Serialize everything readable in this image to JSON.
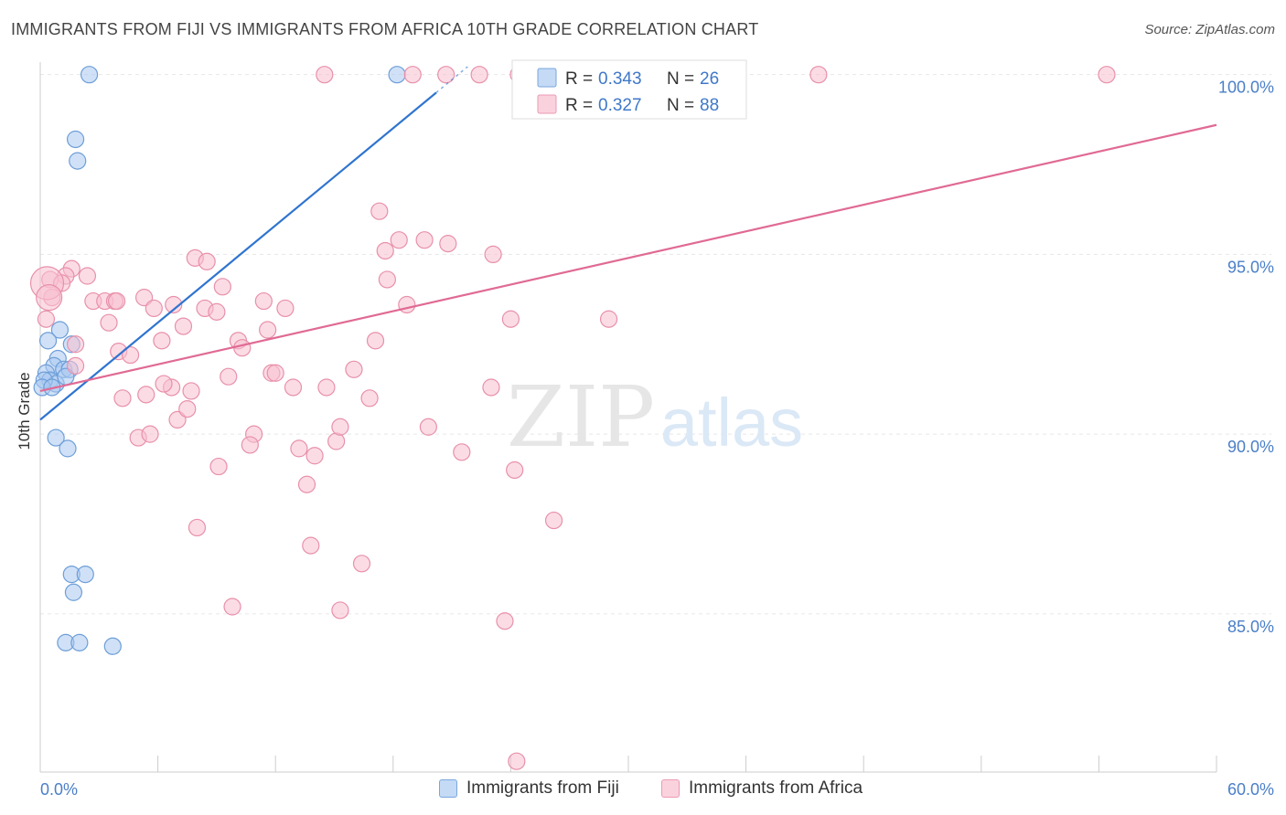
{
  "title": "IMMIGRANTS FROM FIJI VS IMMIGRANTS FROM AFRICA 10TH GRADE CORRELATION CHART",
  "source": "Source: ZipAtlas.com",
  "watermark": {
    "zip": "ZIP",
    "atlas": "atlas"
  },
  "chart_data": {
    "type": "scatter",
    "title": "IMMIGRANTS FROM FIJI VS IMMIGRANTS FROM AFRICA 10TH GRADE CORRELATION CHART",
    "xlabel": "",
    "ylabel": "10th Grade",
    "xlim": [
      0,
      60
    ],
    "ylim": [
      80.6,
      100.5
    ],
    "x_tick_labels": [
      "0.0%",
      "60.0%"
    ],
    "y_ticks": [
      {
        "value": 85,
        "label": "85.0%"
      },
      {
        "value": 90,
        "label": "90.0%"
      },
      {
        "value": 95,
        "label": "95.0%"
      },
      {
        "value": 100,
        "label": "100.0%"
      }
    ],
    "grid": true,
    "legend_placement": "top-center",
    "series": [
      {
        "name": "Immigrants from Fiji",
        "color": "#aac8f0",
        "stroke": "#6d9ed8",
        "line_color": "#2f74d0",
        "r_label": "R =",
        "r_value": "0.343",
        "n_label": "N =",
        "n_value": "26",
        "trend": {
          "x0": 0,
          "y0": 90.4,
          "x1": 20.2,
          "y1": 99.5,
          "dash_to_x": 21.8
        },
        "points": [
          [
            2.5,
            100.0
          ],
          [
            18.2,
            100.0
          ],
          [
            1.8,
            98.2
          ],
          [
            1.9,
            97.6
          ],
          [
            1.0,
            92.9
          ],
          [
            0.4,
            92.6
          ],
          [
            0.9,
            92.1
          ],
          [
            0.7,
            91.9
          ],
          [
            0.3,
            91.7
          ],
          [
            1.2,
            91.8
          ],
          [
            1.5,
            91.8
          ],
          [
            0.5,
            91.5
          ],
          [
            0.8,
            91.4
          ],
          [
            0.2,
            91.5
          ],
          [
            1.6,
            92.5
          ],
          [
            1.3,
            91.6
          ],
          [
            0.1,
            91.3
          ],
          [
            0.6,
            91.3
          ],
          [
            0.8,
            89.9
          ],
          [
            1.4,
            89.6
          ],
          [
            1.6,
            86.1
          ],
          [
            2.3,
            86.1
          ],
          [
            1.7,
            85.6
          ],
          [
            1.3,
            84.2
          ],
          [
            2.0,
            84.2
          ],
          [
            3.7,
            84.1
          ]
        ]
      },
      {
        "name": "Immigrants from Africa",
        "color": "#f7c0d0",
        "stroke": "#e890aa",
        "line_color": "#e06a94",
        "r_label": "R =",
        "r_value": "0.327",
        "n_label": "N =",
        "n_value": "88",
        "trend": {
          "x0": 0,
          "y0": 91.2,
          "x1": 60,
          "y1": 98.6
        },
        "points": [
          [
            14.5,
            100.0
          ],
          [
            19.0,
            100.0
          ],
          [
            20.7,
            100.0
          ],
          [
            22.4,
            100.0
          ],
          [
            24.4,
            100.0
          ],
          [
            28.5,
            100.0
          ],
          [
            33.4,
            100.0
          ],
          [
            39.7,
            100.0
          ],
          [
            54.4,
            100.0
          ],
          [
            32.6,
            99.9
          ],
          [
            0.5,
            94.3
          ],
          [
            0.6,
            93.8
          ],
          [
            0.3,
            93.2
          ],
          [
            1.6,
            94.6
          ],
          [
            1.3,
            94.4
          ],
          [
            2.4,
            94.4
          ],
          [
            1.1,
            94.2
          ],
          [
            1.8,
            92.5
          ],
          [
            1.8,
            91.9
          ],
          [
            2.7,
            93.7
          ],
          [
            3.3,
            93.7
          ],
          [
            3.5,
            93.1
          ],
          [
            3.8,
            93.7
          ],
          [
            4.0,
            92.3
          ],
          [
            3.9,
            93.7
          ],
          [
            4.6,
            92.2
          ],
          [
            5.3,
            93.8
          ],
          [
            5.8,
            93.5
          ],
          [
            5.4,
            91.1
          ],
          [
            6.2,
            92.6
          ],
          [
            6.7,
            91.3
          ],
          [
            6.3,
            91.4
          ],
          [
            4.2,
            91.0
          ],
          [
            5.0,
            89.9
          ],
          [
            5.6,
            90.0
          ],
          [
            6.8,
            93.6
          ],
          [
            7.0,
            90.4
          ],
          [
            7.3,
            93.0
          ],
          [
            7.5,
            90.7
          ],
          [
            7.7,
            91.2
          ],
          [
            7.9,
            94.9
          ],
          [
            8.5,
            94.8
          ],
          [
            8.4,
            93.5
          ],
          [
            9.0,
            93.4
          ],
          [
            9.3,
            94.1
          ],
          [
            9.6,
            91.6
          ],
          [
            9.1,
            89.1
          ],
          [
            10.1,
            92.6
          ],
          [
            10.3,
            92.4
          ],
          [
            10.9,
            90.0
          ],
          [
            10.7,
            89.7
          ],
          [
            11.4,
            93.7
          ],
          [
            11.6,
            92.9
          ],
          [
            11.8,
            91.7
          ],
          [
            12.0,
            91.7
          ],
          [
            12.5,
            93.5
          ],
          [
            12.9,
            91.3
          ],
          [
            13.2,
            89.6
          ],
          [
            13.6,
            88.6
          ],
          [
            13.8,
            86.9
          ],
          [
            14.0,
            89.4
          ],
          [
            14.6,
            91.3
          ],
          [
            15.1,
            89.8
          ],
          [
            15.3,
            90.2
          ],
          [
            16.0,
            91.8
          ],
          [
            16.4,
            86.4
          ],
          [
            16.8,
            91.0
          ],
          [
            17.1,
            92.6
          ],
          [
            17.3,
            96.2
          ],
          [
            17.6,
            95.1
          ],
          [
            17.7,
            94.3
          ],
          [
            18.3,
            95.4
          ],
          [
            18.7,
            93.6
          ],
          [
            19.6,
            95.4
          ],
          [
            19.8,
            90.2
          ],
          [
            20.8,
            95.3
          ],
          [
            21.5,
            89.5
          ],
          [
            23.1,
            95.0
          ],
          [
            23.0,
            91.3
          ],
          [
            24.0,
            93.2
          ],
          [
            24.2,
            89.0
          ],
          [
            26.2,
            87.6
          ],
          [
            29.0,
            93.2
          ],
          [
            15.3,
            85.1
          ],
          [
            23.7,
            84.8
          ],
          [
            24.3,
            80.9
          ],
          [
            9.8,
            85.2
          ],
          [
            8.0,
            87.4
          ]
        ]
      }
    ]
  }
}
